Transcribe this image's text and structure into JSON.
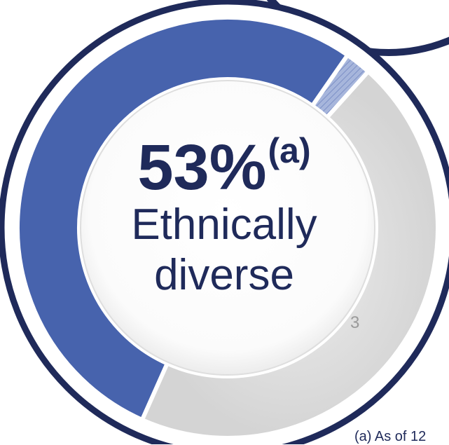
{
  "chart_data": {
    "type": "pie",
    "subtype": "donut",
    "title": "53%",
    "title_superscript": "(a)",
    "subtitle_lines": [
      "Ethnically",
      "diverse"
    ],
    "slices": [
      {
        "label": "Ethnically diverse",
        "value": 53,
        "color": "#4763ad"
      },
      {
        "label": "",
        "value": 2,
        "color": "#9fb0d8",
        "pattern": "hatched"
      },
      {
        "label": "",
        "value": 45,
        "color": "#d9d9d9"
      }
    ],
    "data_labels": [
      "3"
    ],
    "footnote": "(a) As of 12"
  },
  "colors": {
    "ring": "#1f2a5a",
    "primary": "#4763ad",
    "secondary": "#d9d9d9",
    "text": "#1f2a5a"
  }
}
